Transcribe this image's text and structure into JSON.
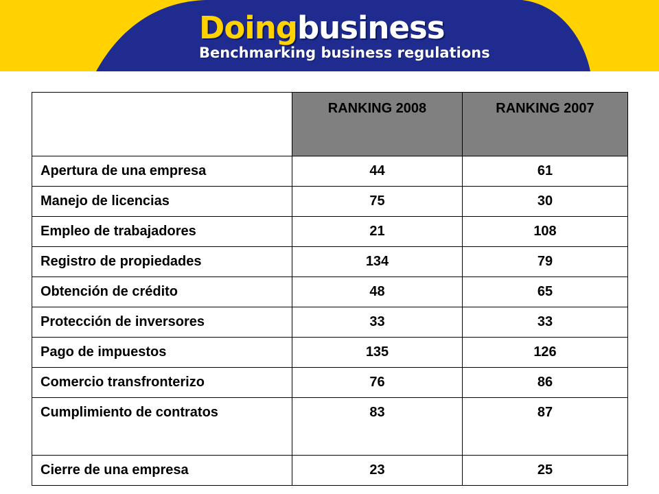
{
  "header": {
    "brand_part1": "Doing",
    "brand_part2": "business",
    "tagline": "Benchmarking business regulations",
    "colors": {
      "navy": "#1f2b8f",
      "yellow": "#ffd200",
      "white": "#ffffff"
    }
  },
  "table": {
    "columns": [
      "",
      "RANKING 2008",
      "RANKING 2007"
    ],
    "rows": [
      {
        "label": "Apertura de una empresa",
        "r2008": "44",
        "r2007": "61"
      },
      {
        "label": "Manejo de licencias",
        "r2008": "75",
        "r2007": "30"
      },
      {
        "label": "Empleo de trabajadores",
        "r2008": "21",
        "r2007": "108"
      },
      {
        "label": "Registro de propiedades",
        "r2008": "134",
        "r2007": "79"
      },
      {
        "label": "Obtención de crédito",
        "r2008": "48",
        "r2007": "65"
      },
      {
        "label": "Protección de inversores",
        "r2008": "33",
        "r2007": "33"
      },
      {
        "label": "Pago de impuestos",
        "r2008": "135",
        "r2007": "126"
      },
      {
        "label": "Comercio transfronterizo",
        "r2008": "76",
        "r2007": "86"
      },
      {
        "label": "Cumplimiento de contratos",
        "r2008": "83",
        "r2007": "87"
      },
      {
        "label": "Cierre de una empresa",
        "r2008": "23",
        "r2007": "25"
      }
    ],
    "header_color": "#808080"
  }
}
